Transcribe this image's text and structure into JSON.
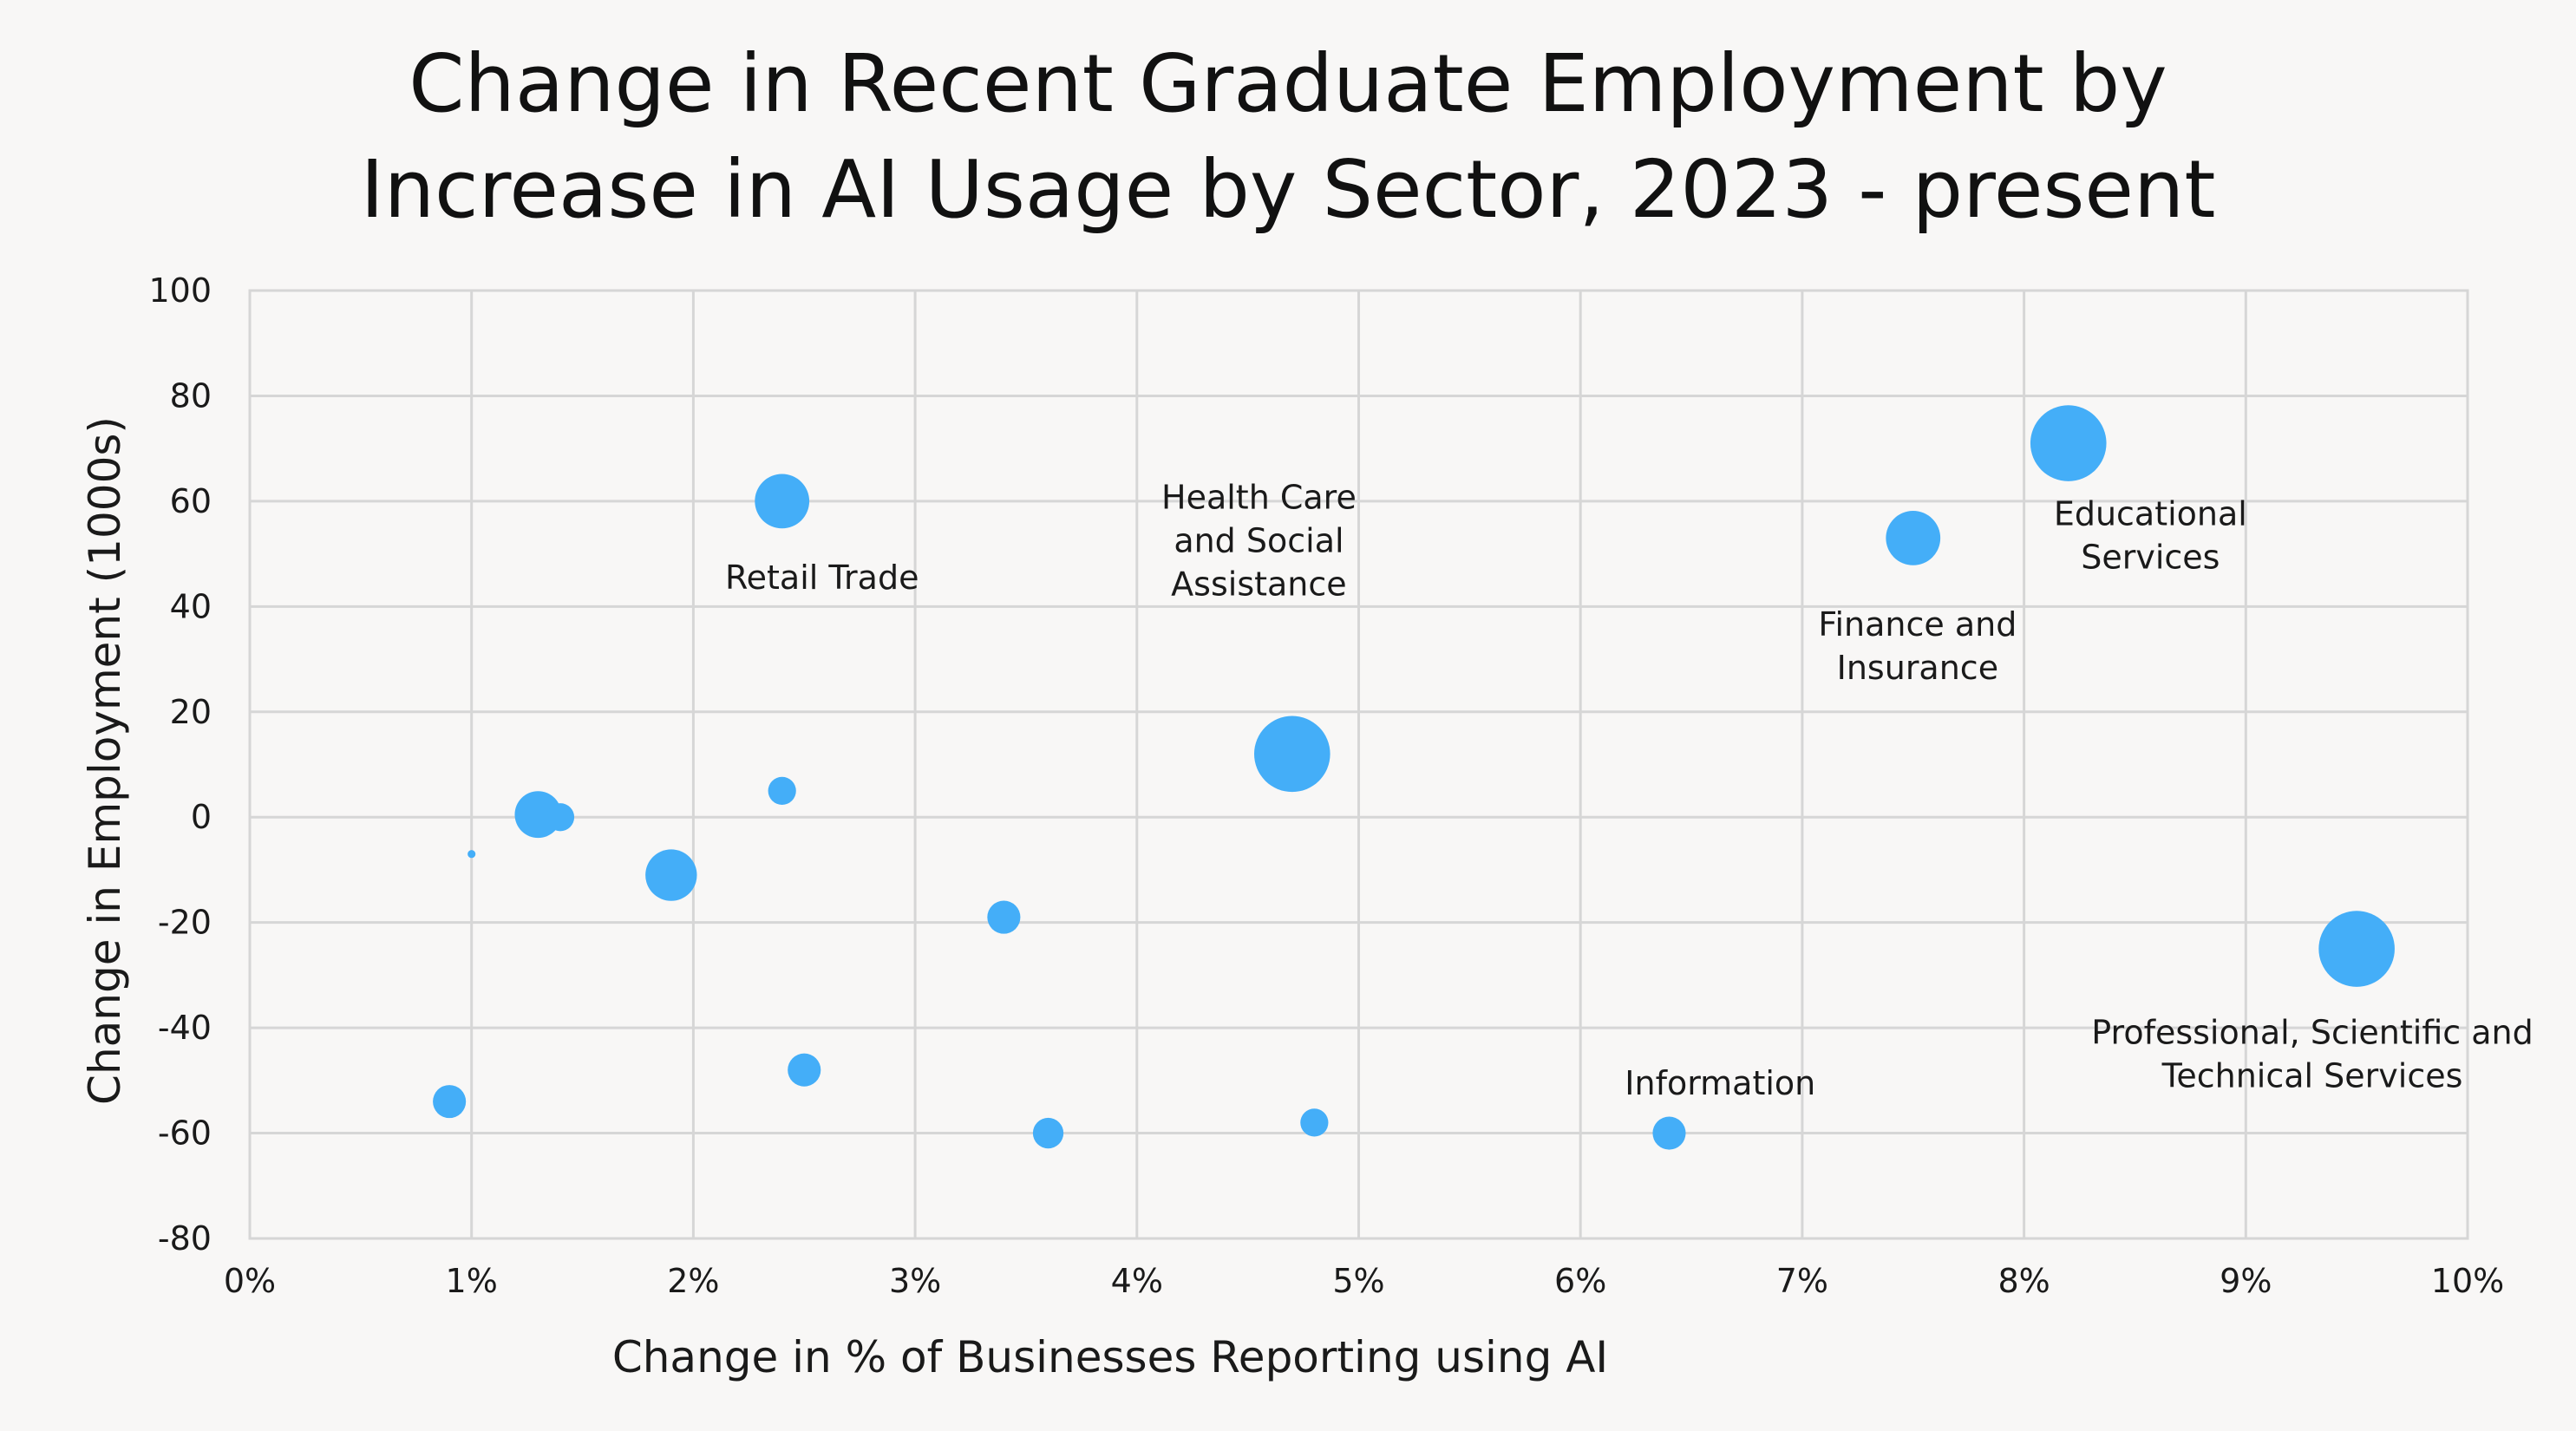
{
  "chart_data": {
    "type": "scatter",
    "title": [
      "Change in Recent Graduate Employment by",
      "Increase in AI Usage by Sector, 2023 - present"
    ],
    "xlabel": "Change in % of Businesses Reporting using AI",
    "ylabel": "Change in Employment (1000s)",
    "xlim": [
      0,
      10
    ],
    "ylim": [
      -80,
      100
    ],
    "xticks": [
      0,
      1,
      2,
      3,
      4,
      5,
      6,
      7,
      8,
      9,
      10
    ],
    "xtick_labels": [
      "0%",
      "1%",
      "2%",
      "3%",
      "4%",
      "5%",
      "6%",
      "7%",
      "8%",
      "9%",
      "10%"
    ],
    "yticks": [
      -80,
      -60,
      -40,
      -20,
      0,
      20,
      40,
      60,
      80,
      100
    ],
    "ytick_labels": [
      "-80",
      "-60",
      "-40",
      "-20",
      "0",
      "20",
      "40",
      "60",
      "80",
      "100"
    ],
    "grid": true,
    "legend": "none",
    "series": [
      {
        "name": "Sectors",
        "color": "#44aef8",
        "points": [
          {
            "x": 8.2,
            "y": 71,
            "size": 37
          },
          {
            "x": 9.5,
            "y": -25,
            "size": 37
          },
          {
            "x": 4.7,
            "y": 12,
            "size": 37
          },
          {
            "x": 7.5,
            "y": 53,
            "size": 19
          },
          {
            "x": 2.4,
            "y": 60,
            "size": 19
          },
          {
            "x": 1.9,
            "y": -11,
            "size": 17
          },
          {
            "x": 1.3,
            "y": 0.5,
            "size": 14
          },
          {
            "x": 1.4,
            "y": 0,
            "size": 5
          },
          {
            "x": 3.4,
            "y": -19,
            "size": 7
          },
          {
            "x": 2.5,
            "y": -48,
            "size": 7
          },
          {
            "x": 0.9,
            "y": -54,
            "size": 7
          },
          {
            "x": 3.6,
            "y": -60,
            "size": 6
          },
          {
            "x": 6.4,
            "y": -60,
            "size": 7
          },
          {
            "x": 4.8,
            "y": -58,
            "size": 5
          },
          {
            "x": 2.4,
            "y": 5,
            "size": 5
          },
          {
            "x": 1.0,
            "y": -7,
            "size": 0.4
          }
        ]
      }
    ],
    "annotations": [
      {
        "lines": [
          "Retail Trade"
        ],
        "x": 2.58,
        "y": 45.5
      },
      {
        "lines": [
          "Health Care",
          "and Social",
          "Assistance"
        ],
        "x": 4.55,
        "y": 52.5
      },
      {
        "lines": [
          "Finance and",
          "Insurance"
        ],
        "x": 7.52,
        "y": 32.5
      },
      {
        "lines": [
          "Educational",
          "Services"
        ],
        "x": 8.57,
        "y": 53.5
      },
      {
        "lines": [
          "Information"
        ],
        "x": 6.63,
        "y": -50.5
      },
      {
        "lines": [
          "Professional, Scientific and",
          "Technical Services"
        ],
        "x": 9.3,
        "y": -45
      }
    ]
  }
}
